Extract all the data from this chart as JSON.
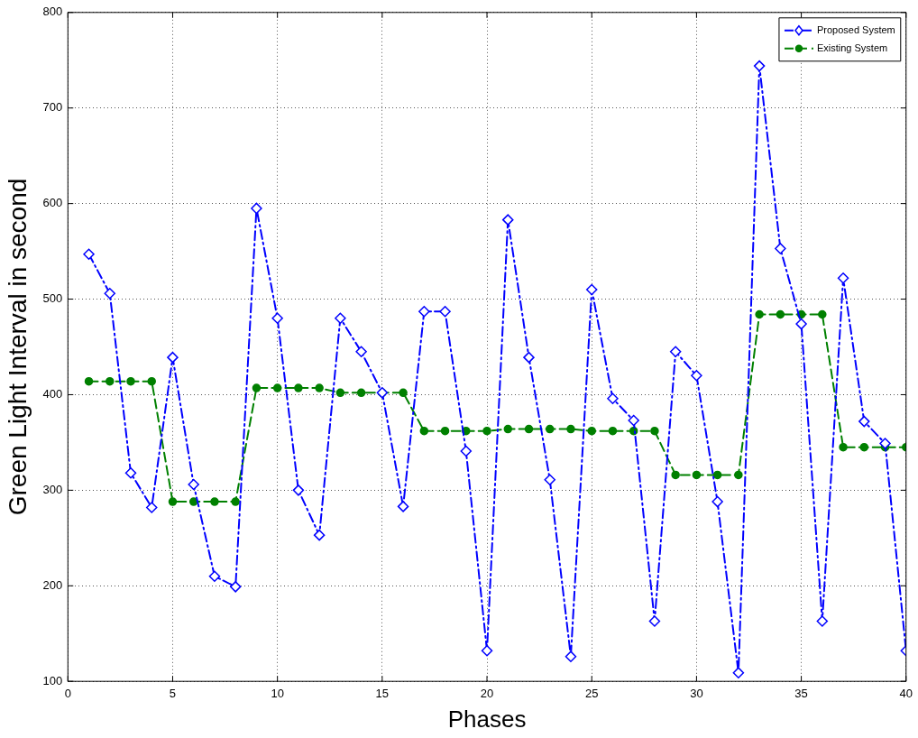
{
  "chart_data": {
    "type": "line",
    "xlabel": "Phases",
    "ylabel": "Green Light Interval in second",
    "x": [
      1,
      2,
      3,
      4,
      5,
      6,
      7,
      8,
      9,
      10,
      11,
      12,
      13,
      14,
      15,
      16,
      17,
      18,
      19,
      20,
      21,
      22,
      23,
      24,
      25,
      26,
      27,
      28,
      29,
      30,
      31,
      32,
      33,
      34,
      35,
      36,
      37,
      38,
      39,
      40
    ],
    "series": [
      {
        "name": "Proposed System",
        "color": "#0000ff",
        "marker": "diamond",
        "line_style": "dashdot",
        "values": [
          547,
          506,
          318,
          282,
          439,
          306,
          210,
          199,
          595,
          480,
          300,
          253,
          480,
          445,
          402,
          283,
          487,
          487,
          341,
          132,
          583,
          439,
          311,
          126,
          510,
          396,
          373,
          163,
          445,
          420,
          288,
          109,
          744,
          553,
          474,
          163,
          522,
          372,
          349,
          132
        ]
      },
      {
        "name": "Existing System",
        "color": "#008000",
        "marker": "circle",
        "line_style": "dashed",
        "values": [
          414,
          414,
          414,
          414,
          288,
          288,
          288,
          288,
          407,
          407,
          407,
          407,
          402,
          402,
          402,
          402,
          362,
          362,
          362,
          362,
          364,
          364,
          364,
          364,
          362,
          362,
          362,
          362,
          316,
          316,
          316,
          316,
          484,
          484,
          484,
          484,
          345,
          345,
          345,
          345
        ]
      }
    ],
    "xlim": [
      0,
      40
    ],
    "xticks": [
      0,
      5,
      10,
      15,
      20,
      25,
      30,
      35,
      40
    ],
    "ylim": [
      100,
      800
    ],
    "yticks": [
      100,
      200,
      300,
      400,
      500,
      600,
      700,
      800
    ],
    "grid": true,
    "legend": "top right"
  }
}
